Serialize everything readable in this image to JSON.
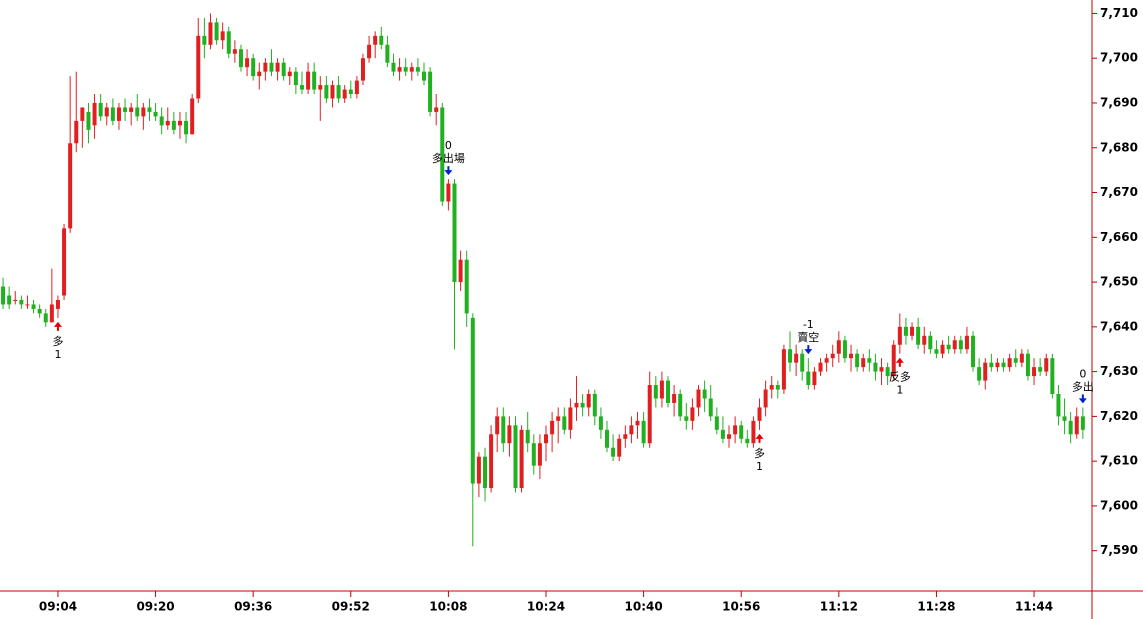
{
  "chart_data": {
    "type": "candlestick",
    "up_color": "#e02020",
    "down_color": "#20b020",
    "axis_color": "#c00000",
    "ylim": [
      7581,
      7713
    ],
    "xlim": [
      -0.5,
      178.5
    ],
    "yticks": [
      {
        "value": 7590,
        "label": "7,590"
      },
      {
        "value": 7600,
        "label": "7,600"
      },
      {
        "value": 7610,
        "label": "7,610"
      },
      {
        "value": 7620,
        "label": "7,620"
      },
      {
        "value": 7630,
        "label": "7,630"
      },
      {
        "value": 7640,
        "label": "7,640"
      },
      {
        "value": 7650,
        "label": "7,650"
      },
      {
        "value": 7660,
        "label": "7,660"
      },
      {
        "value": 7670,
        "label": "7,670"
      },
      {
        "value": 7680,
        "label": "7,680"
      },
      {
        "value": 7690,
        "label": "7,690"
      },
      {
        "value": 7700,
        "label": "7,700"
      },
      {
        "value": 7710,
        "label": "7,710"
      }
    ],
    "xticks": [
      {
        "value": 9,
        "label": "09:04"
      },
      {
        "value": 25,
        "label": "09:20"
      },
      {
        "value": 41,
        "label": "09:36"
      },
      {
        "value": 57,
        "label": "09:52"
      },
      {
        "value": 73,
        "label": "10:08"
      },
      {
        "value": 89,
        "label": "10:24"
      },
      {
        "value": 105,
        "label": "10:40"
      },
      {
        "value": 121,
        "label": "10:56"
      },
      {
        "value": 137,
        "label": "11:12"
      },
      {
        "value": 153,
        "label": "11:28"
      },
      {
        "value": 169,
        "label": "11:44"
      }
    ],
    "ohlc": [
      [
        7649,
        7651,
        7644,
        7645
      ],
      [
        7647,
        7649,
        7644,
        7645
      ],
      [
        7646,
        7648,
        7645,
        7646
      ],
      [
        7646,
        7647,
        7644,
        7645
      ],
      [
        7645,
        7647,
        7644,
        7645
      ],
      [
        7645,
        7646,
        7643,
        7644
      ],
      [
        7644,
        7645,
        7642,
        7643
      ],
      [
        7643,
        7644,
        7640,
        7641
      ],
      [
        7641,
        7653,
        7641,
        7645
      ],
      [
        7644,
        7647,
        7642,
        7646
      ],
      [
        7647,
        7663,
        7646,
        7662
      ],
      [
        7662,
        7696,
        7661,
        7681
      ],
      [
        7681,
        7697,
        7679,
        7686
      ],
      [
        7686,
        7689,
        7680,
        7689
      ],
      [
        7688,
        7690,
        7681,
        7684
      ],
      [
        7685,
        7692,
        7682,
        7690
      ],
      [
        7690,
        7692,
        7686,
        7687
      ],
      [
        7687,
        7690,
        7685,
        7689
      ],
      [
        7689,
        7691,
        7685,
        7686
      ],
      [
        7686,
        7690,
        7684,
        7689
      ],
      [
        7689,
        7691,
        7686,
        7688
      ],
      [
        7688,
        7690,
        7685,
        7689
      ],
      [
        7689,
        7692,
        7686,
        7687
      ],
      [
        7687,
        7690,
        7684,
        7689
      ],
      [
        7689,
        7691,
        7686,
        7688
      ],
      [
        7688,
        7690,
        7686,
        7687
      ],
      [
        7687,
        7689,
        7683,
        7685
      ],
      [
        7685,
        7689,
        7684,
        7686
      ],
      [
        7686,
        7688,
        7683,
        7684
      ],
      [
        7685,
        7688,
        7682,
        7686
      ],
      [
        7686,
        7688,
        7681,
        7683
      ],
      [
        7683,
        7692,
        7683,
        7691
      ],
      [
        7691,
        7709,
        7690,
        7705
      ],
      [
        7705,
        7709,
        7700,
        7703
      ],
      [
        7703,
        7710,
        7702,
        7708
      ],
      [
        7708,
        7709,
        7703,
        7704
      ],
      [
        7704,
        7708,
        7702,
        7706
      ],
      [
        7706,
        7707,
        7700,
        7701
      ],
      [
        7701,
        7704,
        7699,
        7702
      ],
      [
        7702,
        7703,
        7697,
        7698
      ],
      [
        7698,
        7702,
        7696,
        7700
      ],
      [
        7700,
        7701,
        7695,
        7696
      ],
      [
        7696,
        7699,
        7693,
        7697
      ],
      [
        7697,
        7700,
        7695,
        7699
      ],
      [
        7699,
        7702,
        7696,
        7697
      ],
      [
        7697,
        7700,
        7695,
        7699
      ],
      [
        7699,
        7700,
        7695,
        7696
      ],
      [
        7696,
        7698,
        7694,
        7697
      ],
      [
        7697,
        7698,
        7692,
        7694
      ],
      [
        7694,
        7697,
        7692,
        7693
      ],
      [
        7693,
        7699,
        7692,
        7697
      ],
      [
        7697,
        7699,
        7692,
        7693
      ],
      [
        7693,
        7696,
        7686,
        7694
      ],
      [
        7694,
        7696,
        7690,
        7691
      ],
      [
        7691,
        7695,
        7689,
        7694
      ],
      [
        7694,
        7696,
        7690,
        7691
      ],
      [
        7691,
        7694,
        7690,
        7693
      ],
      [
        7693,
        7695,
        7691,
        7692
      ],
      [
        7692,
        7696,
        7691,
        7695
      ],
      [
        7695,
        7701,
        7694,
        7700
      ],
      [
        7700,
        7705,
        7699,
        7703
      ],
      [
        7703,
        7706,
        7700,
        7705
      ],
      [
        7705,
        7707,
        7702,
        7703
      ],
      [
        7703,
        7705,
        7698,
        7699
      ],
      [
        7699,
        7701,
        7696,
        7697
      ],
      [
        7697,
        7700,
        7695,
        7698
      ],
      [
        7698,
        7700,
        7696,
        7697
      ],
      [
        7697,
        7699,
        7695,
        7698
      ],
      [
        7698,
        7700,
        7696,
        7697
      ],
      [
        7697,
        7699,
        7694,
        7695
      ],
      [
        7697,
        7698,
        7687,
        7688
      ],
      [
        7688,
        7692,
        7685,
        7689
      ],
      [
        7689,
        7690,
        7667,
        7668
      ],
      [
        7668,
        7673,
        7666,
        7672
      ],
      [
        7672,
        7673,
        7635,
        7650
      ],
      [
        7650,
        7657,
        7648,
        7655
      ],
      [
        7655,
        7657,
        7640,
        7643
      ],
      [
        7642,
        7643,
        7591,
        7605
      ],
      [
        7605,
        7612,
        7602,
        7611
      ],
      [
        7611,
        7613,
        7601,
        7604
      ],
      [
        7604,
        7618,
        7603,
        7616
      ],
      [
        7616,
        7622,
        7612,
        7620
      ],
      [
        7620,
        7622,
        7612,
        7614
      ],
      [
        7614,
        7620,
        7611,
        7618
      ],
      [
        7618,
        7620,
        7603,
        7604
      ],
      [
        7604,
        7618,
        7603,
        7617
      ],
      [
        7617,
        7621,
        7612,
        7614
      ],
      [
        7614,
        7616,
        7607,
        7609
      ],
      [
        7609,
        7616,
        7606,
        7614
      ],
      [
        7614,
        7618,
        7610,
        7616
      ],
      [
        7616,
        7621,
        7612,
        7619
      ],
      [
        7619,
        7622,
        7614,
        7620
      ],
      [
        7620,
        7622,
        7616,
        7617
      ],
      [
        7617,
        7624,
        7615,
        7622
      ],
      [
        7622,
        7629,
        7619,
        7623
      ],
      [
        7623,
        7625,
        7620,
        7622
      ],
      [
        7622,
        7626,
        7620,
        7625
      ],
      [
        7625,
        7626,
        7618,
        7620
      ],
      [
        7620,
        7622,
        7615,
        7617
      ],
      [
        7617,
        7619,
        7612,
        7613
      ],
      [
        7613,
        7616,
        7610,
        7611
      ],
      [
        7611,
        7616,
        7610,
        7615
      ],
      [
        7615,
        7618,
        7613,
        7616
      ],
      [
        7616,
        7620,
        7614,
        7618
      ],
      [
        7618,
        7621,
        7615,
        7619
      ],
      [
        7619,
        7621,
        7613,
        7614
      ],
      [
        7614,
        7630,
        7613,
        7627
      ],
      [
        7627,
        7629,
        7622,
        7624
      ],
      [
        7624,
        7630,
        7622,
        7628
      ],
      [
        7628,
        7629,
        7622,
        7623
      ],
      [
        7623,
        7627,
        7620,
        7625
      ],
      [
        7625,
        7626,
        7619,
        7620
      ],
      [
        7620,
        7623,
        7617,
        7619
      ],
      [
        7619,
        7624,
        7617,
        7622
      ],
      [
        7622,
        7627,
        7620,
        7626
      ],
      [
        7626,
        7628,
        7621,
        7624
      ],
      [
        7624,
        7627,
        7619,
        7620
      ],
      [
        7620,
        7622,
        7616,
        7617
      ],
      [
        7617,
        7620,
        7614,
        7615
      ],
      [
        7615,
        7618,
        7613,
        7616
      ],
      [
        7616,
        7620,
        7614,
        7618
      ],
      [
        7618,
        7619,
        7614,
        7615
      ],
      [
        7615,
        7617,
        7613,
        7614
      ],
      [
        7614,
        7620,
        7613,
        7619
      ],
      [
        7619,
        7624,
        7617,
        7622
      ],
      [
        7622,
        7628,
        7620,
        7626
      ],
      [
        7626,
        7629,
        7624,
        7627
      ],
      [
        7627,
        7628,
        7624,
        7626
      ],
      [
        7626,
        7636,
        7625,
        7635
      ],
      [
        7635,
        7639,
        7630,
        7632
      ],
      [
        7632,
        7636,
        7629,
        7634
      ],
      [
        7634,
        7635,
        7628,
        7630
      ],
      [
        7630,
        7633,
        7626,
        7627
      ],
      [
        7627,
        7631,
        7626,
        7630
      ],
      [
        7630,
        7633,
        7629,
        7632
      ],
      [
        7632,
        7634,
        7630,
        7633
      ],
      [
        7633,
        7636,
        7631,
        7634
      ],
      [
        7634,
        7639,
        7632,
        7637
      ],
      [
        7637,
        7638,
        7632,
        7633
      ],
      [
        7633,
        7636,
        7630,
        7634
      ],
      [
        7634,
        7635,
        7630,
        7631
      ],
      [
        7631,
        7634,
        7630,
        7633
      ],
      [
        7633,
        7635,
        7630,
        7632
      ],
      [
        7632,
        7634,
        7628,
        7630
      ],
      [
        7630,
        7633,
        7627,
        7631
      ],
      [
        7631,
        7632,
        7627,
        7629
      ],
      [
        7629,
        7637,
        7628,
        7636
      ],
      [
        7636,
        7643,
        7634,
        7640
      ],
      [
        7640,
        7642,
        7636,
        7638
      ],
      [
        7638,
        7641,
        7637,
        7640
      ],
      [
        7640,
        7642,
        7635,
        7636
      ],
      [
        7636,
        7640,
        7634,
        7638
      ],
      [
        7638,
        7639,
        7634,
        7635
      ],
      [
        7635,
        7637,
        7633,
        7634
      ],
      [
        7634,
        7637,
        7633,
        7636
      ],
      [
        7636,
        7638,
        7634,
        7635
      ],
      [
        7635,
        7638,
        7634,
        7637
      ],
      [
        7637,
        7638,
        7634,
        7635
      ],
      [
        7635,
        7640,
        7634,
        7638
      ],
      [
        7638,
        7639,
        7630,
        7631
      ],
      [
        7631,
        7633,
        7627,
        7628
      ],
      [
        7628,
        7633,
        7626,
        7632
      ],
      [
        7632,
        7634,
        7630,
        7631
      ],
      [
        7631,
        7633,
        7630,
        7632
      ],
      [
        7632,
        7633,
        7630,
        7631
      ],
      [
        7631,
        7634,
        7630,
        7633
      ],
      [
        7633,
        7635,
        7631,
        7632
      ],
      [
        7632,
        7635,
        7631,
        7634
      ],
      [
        7634,
        7635,
        7628,
        7629
      ],
      [
        7629,
        7633,
        7627,
        7631
      ],
      [
        7631,
        7633,
        7629,
        7630
      ],
      [
        7630,
        7634,
        7629,
        7633
      ],
      [
        7633,
        7634,
        7624,
        7625
      ],
      [
        7625,
        7627,
        7618,
        7620
      ],
      [
        7620,
        7624,
        7616,
        7619
      ],
      [
        7619,
        7621,
        7614,
        7616
      ],
      [
        7616,
        7622,
        7615,
        7620
      ],
      [
        7620,
        7622,
        7615,
        7617
      ]
    ],
    "signals": [
      {
        "x": 9,
        "direction": "up",
        "label": "多",
        "qty": "1"
      },
      {
        "x": 73,
        "direction": "down",
        "label": "多出場",
        "qty": "0"
      },
      {
        "x": 124,
        "direction": "up",
        "label": "多",
        "qty": "1"
      },
      {
        "x": 132,
        "direction": "down",
        "label": "賣空",
        "qty": "-1"
      },
      {
        "x": 147,
        "direction": "up",
        "label": "反多",
        "qty": "1"
      },
      {
        "x": 177,
        "direction": "down",
        "label": "多出",
        "qty": "0"
      }
    ]
  }
}
